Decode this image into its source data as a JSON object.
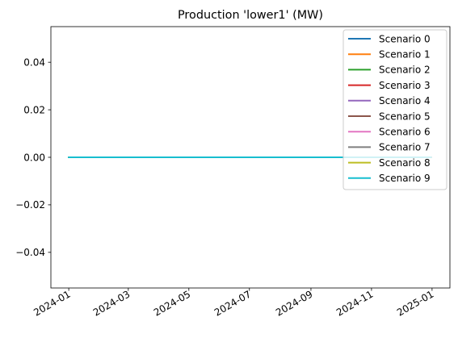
{
  "chart_data": {
    "type": "line",
    "title": "Production 'lower1' (MW)",
    "xlabel": "",
    "ylabel": "",
    "x_ticks": [
      "2024-01",
      "2024-03",
      "2024-05",
      "2024-07",
      "2024-09",
      "2024-11",
      "2025-01"
    ],
    "y_ticks": [
      "−0.04",
      "−0.02",
      "0.00",
      "0.02",
      "0.04"
    ],
    "y_tick_values": [
      -0.04,
      -0.02,
      0.0,
      0.02,
      0.04
    ],
    "xlim": [
      "2023-12-14",
      "2025-01-19"
    ],
    "ylim": [
      -0.055,
      0.055
    ],
    "x": [
      "2024-01-01",
      "2024-12-31"
    ],
    "series": [
      {
        "name": "Scenario 0",
        "color": "#1f77b4",
        "values": [
          0,
          0
        ]
      },
      {
        "name": "Scenario 1",
        "color": "#ff7f0e",
        "values": [
          0,
          0
        ]
      },
      {
        "name": "Scenario 2",
        "color": "#2ca02c",
        "values": [
          0,
          0
        ]
      },
      {
        "name": "Scenario 3",
        "color": "#d62728",
        "values": [
          0,
          0
        ]
      },
      {
        "name": "Scenario 4",
        "color": "#9467bd",
        "values": [
          0,
          0
        ]
      },
      {
        "name": "Scenario 5",
        "color": "#8c564b",
        "values": [
          0,
          0
        ]
      },
      {
        "name": "Scenario 6",
        "color": "#e377c2",
        "values": [
          0,
          0
        ]
      },
      {
        "name": "Scenario 7",
        "color": "#7f7f7f",
        "values": [
          0,
          0
        ]
      },
      {
        "name": "Scenario 8",
        "color": "#bcbd22",
        "values": [
          0,
          0
        ]
      },
      {
        "name": "Scenario 9",
        "color": "#17becf",
        "values": [
          0,
          0
        ]
      }
    ],
    "legend": "top-right",
    "grid": false
  }
}
